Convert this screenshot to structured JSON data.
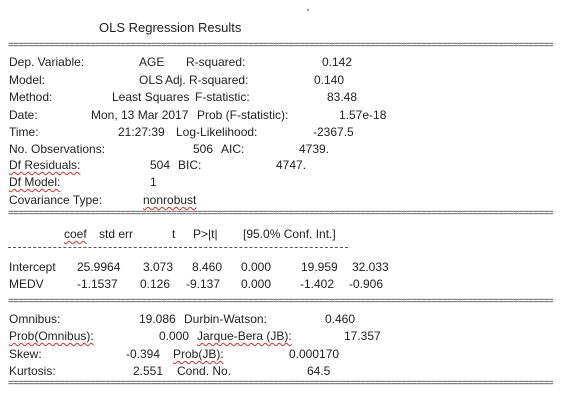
{
  "title": "OLS Regression Results",
  "separator": "============================================================================================================",
  "dash_separator": "---------------------------------------------------------------------------------------------",
  "left_labels": [
    "Dep. Variable:",
    "Model:",
    "Method:",
    "Date:",
    "Time:",
    "No. Observations:",
    "Df Residuals:",
    "Df Model:",
    "Covariance Type:"
  ],
  "left_values": [
    "AGE",
    "OLS",
    "Least Squares",
    "Mon, 13 Mar 2017",
    "21:27:39",
    "506",
    "504",
    "1",
    "nonrobust"
  ],
  "right_labels": [
    "R-squared:",
    "Adj. R-squared:",
    "F-statistic:",
    "Prob (F-statistic):",
    "Log-Likelihood:",
    "AIC:",
    "BIC:"
  ],
  "right_values": [
    "0.142",
    "0.140",
    "83.48",
    "1.57e-18",
    "-2367.5",
    "4739.",
    "4747."
  ],
  "coef_headers": [
    "coef",
    "std err",
    "t",
    "P>|t|",
    "[95.0% Conf. Int.]"
  ],
  "coef_rows": [
    {
      "name": "Intercept",
      "values": [
        "25.9964",
        "3.073",
        "8.460",
        "0.000",
        "19.959",
        "32.033"
      ]
    },
    {
      "name": "MEDV",
      "values": [
        "-1.1537",
        "0.126",
        "-9.137",
        "0.000",
        "-1.402",
        "-0.906"
      ]
    }
  ],
  "diag_left_labels": [
    "Omnibus:",
    "Prob(Omnibus):",
    "Skew:",
    "Kurtosis:"
  ],
  "diag_left_values": [
    "19.086",
    "0.000",
    "-0.394",
    "2.551"
  ],
  "diag_right_labels": [
    "Durbin-Watson:",
    "Jarque-Bera (JB):",
    "Prob(JB):",
    "Cond. No."
  ],
  "diag_right_values": [
    "0.460",
    "17.357",
    "0.000170",
    "64.5"
  ]
}
